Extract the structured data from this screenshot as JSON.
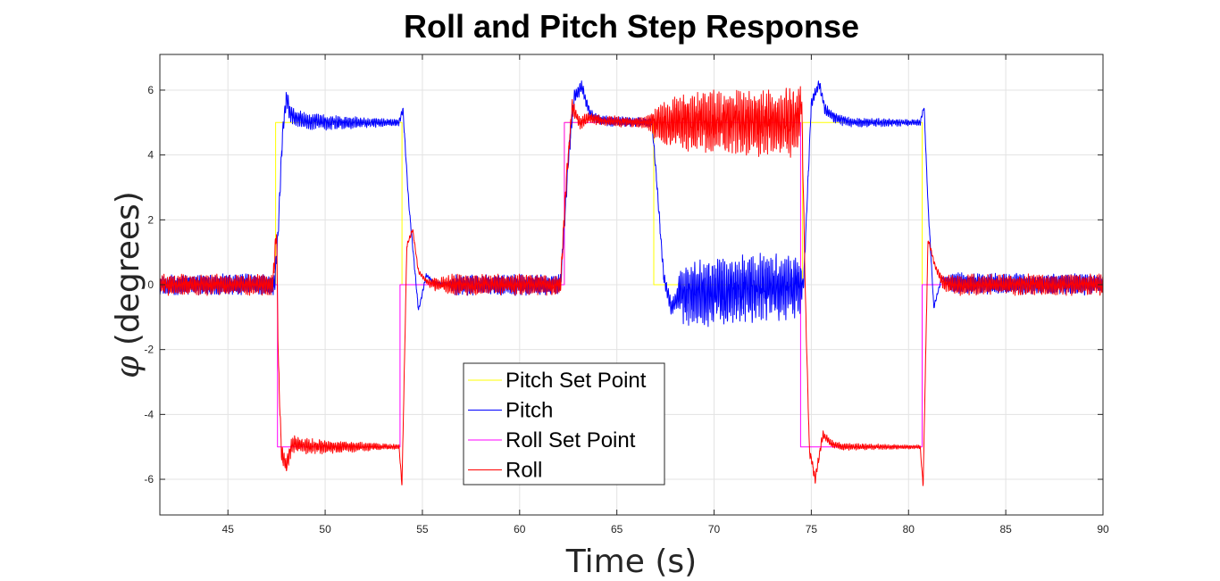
{
  "chart_data": {
    "type": "line",
    "title": "Roll and Pitch Step Response",
    "xlabel": "Time (s)",
    "ylabel_symbol": "φ",
    "ylabel": "(degrees)",
    "xlim": [
      41.5,
      90
    ],
    "ylim": [
      -7.1,
      7.1
    ],
    "x_ticks": [
      45,
      50,
      55,
      60,
      65,
      70,
      75,
      80,
      85,
      90
    ],
    "y_ticks": [
      -6,
      -4,
      -2,
      0,
      2,
      4,
      6
    ],
    "grid": true,
    "legend_position": "bottom-center",
    "colors": {
      "pitch_set_point": "#ffff00",
      "pitch": "#0000ff",
      "roll_set_point": "#ff00ff",
      "roll": "#ff0000",
      "grid": "#e3e3e3",
      "axes": "#262626"
    },
    "series": [
      {
        "name": "Pitch Set Point",
        "color": "#ffff00",
        "kind": "step",
        "x": [
          41.5,
          47.45,
          47.45,
          53.95,
          53.95,
          62.3,
          62.3,
          66.9,
          66.9,
          74.55,
          74.55,
          80.7,
          80.7,
          90
        ],
        "y": [
          0,
          0,
          5,
          5,
          0,
          0,
          5,
          5,
          0,
          0,
          5,
          5,
          0,
          0
        ]
      },
      {
        "name": "Pitch",
        "color": "#0000ff",
        "kind": "noisy",
        "x": [
          41.5,
          47.4,
          47.6,
          47.8,
          48.0,
          48.2,
          48.5,
          49.0,
          50.0,
          53.8,
          54.0,
          54.3,
          54.8,
          55.2,
          55.6,
          56.5,
          62.1,
          62.5,
          62.8,
          63.2,
          63.6,
          64.0,
          64.5,
          66.8,
          67.0,
          67.4,
          67.8,
          68.2,
          74.6,
          74.8,
          75.0,
          75.4,
          75.7,
          76.2,
          77.0,
          80.6,
          80.8,
          81.0,
          81.3,
          81.7,
          82.2,
          90
        ],
        "y": [
          0,
          0,
          1.8,
          4.6,
          5.8,
          5.3,
          5.15,
          5.05,
          5.0,
          5.0,
          5.4,
          2.5,
          -0.8,
          0.3,
          0.05,
          0,
          0,
          3.8,
          5.8,
          6.1,
          5.3,
          5.1,
          5.05,
          5.0,
          3.6,
          0.3,
          -0.7,
          -0.3,
          0,
          2.8,
          5.6,
          6.2,
          5.4,
          5.15,
          5.0,
          5.0,
          5.5,
          2.5,
          -0.7,
          0.2,
          0.05,
          0
        ],
        "noise_points": [
          [
            41.5,
            0.28
          ],
          [
            47.3,
            0.28
          ],
          [
            55.2,
            0.05
          ],
          [
            56.3,
            0.05
          ],
          [
            56.7,
            0.28
          ],
          [
            62.0,
            0.28
          ],
          [
            63.5,
            0.15
          ],
          [
            66.8,
            0.12
          ],
          [
            68.0,
            0.25
          ],
          [
            68.5,
            0.9
          ],
          [
            74.4,
            0.9
          ],
          [
            74.6,
            0.15
          ],
          [
            76.0,
            0.15
          ],
          [
            80.6,
            0.08
          ],
          [
            81.8,
            0.05
          ],
          [
            82.2,
            0.28
          ],
          [
            90,
            0.28
          ]
        ]
      },
      {
        "name": "Roll Set Point",
        "color": "#ff00ff",
        "kind": "step",
        "x": [
          41.5,
          47.55,
          47.55,
          53.85,
          53.85,
          62.3,
          62.3,
          74.45,
          74.45,
          80.7,
          80.7,
          90
        ],
        "y": [
          0,
          0,
          -5,
          -5,
          0,
          0,
          5,
          5,
          -5,
          -5,
          0,
          0
        ]
      },
      {
        "name": "Roll",
        "color": "#ff0000",
        "kind": "noisy",
        "x": [
          41.5,
          47.3,
          47.5,
          47.6,
          47.75,
          48.0,
          48.3,
          48.7,
          49.5,
          53.8,
          53.95,
          54.2,
          54.5,
          54.8,
          55.3,
          56.0,
          62.1,
          62.4,
          62.7,
          63.1,
          63.6,
          64.2,
          66.8,
          74.3,
          74.5,
          74.7,
          74.9,
          75.2,
          75.6,
          76.0,
          76.6,
          80.6,
          80.75,
          81.0,
          81.4,
          81.8,
          82.3,
          90
        ],
        "y": [
          0,
          0,
          1.6,
          -2.5,
          -5.2,
          -5.6,
          -4.9,
          -4.95,
          -5.0,
          -5.0,
          -6.2,
          1.2,
          1.7,
          0.4,
          0.05,
          0,
          0,
          3.2,
          5.5,
          5.0,
          5.15,
          5.05,
          5.0,
          5.0,
          5.7,
          -0.5,
          -5.1,
          -6.0,
          -4.6,
          -4.9,
          -5.0,
          -5.0,
          -6.2,
          1.4,
          0.5,
          0.05,
          0,
          0
        ],
        "noise_points": [
          [
            41.5,
            0.28
          ],
          [
            47.2,
            0.28
          ],
          [
            53.8,
            0.06
          ],
          [
            55.2,
            0.06
          ],
          [
            55.6,
            0.2
          ],
          [
            56.6,
            0.28
          ],
          [
            62.0,
            0.28
          ],
          [
            63.5,
            0.15
          ],
          [
            66.5,
            0.15
          ],
          [
            67.0,
            0.45
          ],
          [
            68.0,
            0.75
          ],
          [
            70.5,
            0.9
          ],
          [
            74.3,
            0.9
          ],
          [
            74.6,
            0.15
          ],
          [
            76.4,
            0.1
          ],
          [
            80.6,
            0.05
          ],
          [
            81.5,
            0.08
          ],
          [
            82.0,
            0.28
          ],
          [
            90,
            0.28
          ]
        ]
      }
    ]
  }
}
